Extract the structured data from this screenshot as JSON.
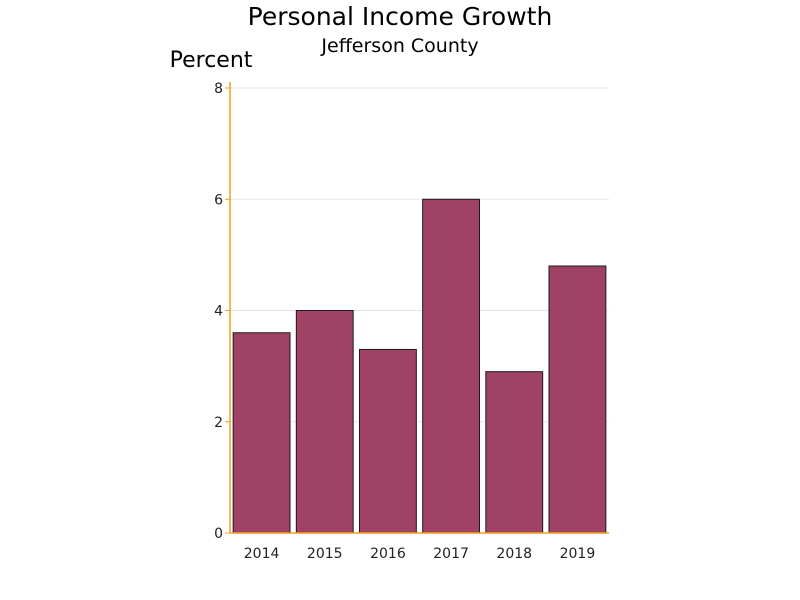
{
  "chart_data": {
    "type": "bar",
    "title": "Personal Income Growth",
    "subtitle": "Jefferson County",
    "ylabel": "Percent",
    "xlabel": "",
    "categories": [
      "2014",
      "2015",
      "2016",
      "2017",
      "2018",
      "2019"
    ],
    "values": [
      3.6,
      4.0,
      3.3,
      6.0,
      2.9,
      4.8
    ],
    "ylim": [
      0,
      8
    ],
    "yticks": [
      "0",
      "2",
      "4",
      "6",
      "8"
    ],
    "grid": true,
    "legend": "none",
    "colors": {
      "bar": "#a04266",
      "axis": "#f0a020",
      "grid": "#e6e6e6"
    }
  }
}
